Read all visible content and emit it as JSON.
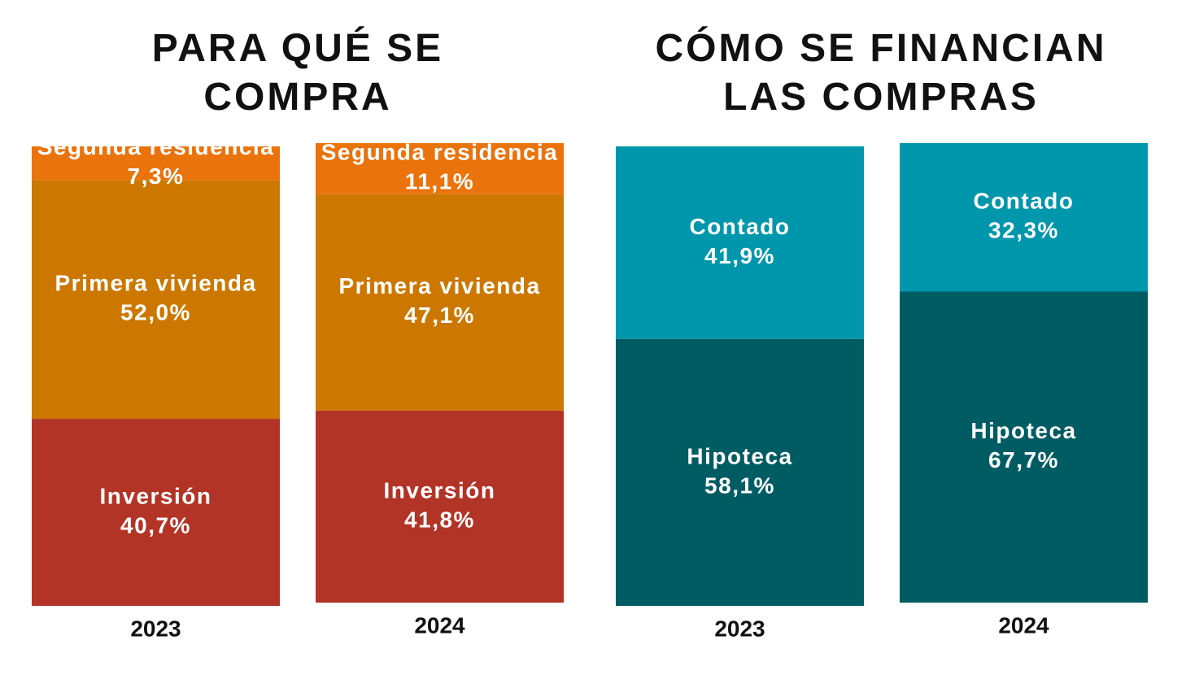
{
  "chart_data": [
    {
      "type": "bar",
      "stacked": true,
      "title": "PARA QUÉ SE COMPRA",
      "categories": [
        "2023",
        "2024"
      ],
      "ylim": [
        0,
        100
      ],
      "series": [
        {
          "name": "Inversión",
          "color": "#b23427",
          "values": [
            40.7,
            41.8
          ],
          "value_labels": [
            "40,7%",
            "41,8%"
          ]
        },
        {
          "name": "Primera vivienda",
          "color": "#cc7800",
          "values": [
            52.0,
            47.1
          ],
          "value_labels": [
            "52,0%",
            "47,1%"
          ]
        },
        {
          "name": "Segunda residencia",
          "color": "#ea730c",
          "values": [
            7.3,
            11.1
          ],
          "value_labels": [
            "7,3%",
            "11,1%"
          ]
        }
      ]
    },
    {
      "type": "bar",
      "stacked": true,
      "title": "CÓMO SE FINANCIAN LAS COMPRAS",
      "categories": [
        "2023",
        "2024"
      ],
      "ylim": [
        0,
        100
      ],
      "series": [
        {
          "name": "Hipoteca",
          "color": "#005c63",
          "values": [
            58.1,
            67.7
          ],
          "value_labels": [
            "58,1%",
            "67,7%"
          ]
        },
        {
          "name": "Contado",
          "color": "#0096ab",
          "values": [
            41.9,
            32.3
          ],
          "value_labels": [
            "41,9%",
            "32,3%"
          ]
        }
      ]
    }
  ]
}
